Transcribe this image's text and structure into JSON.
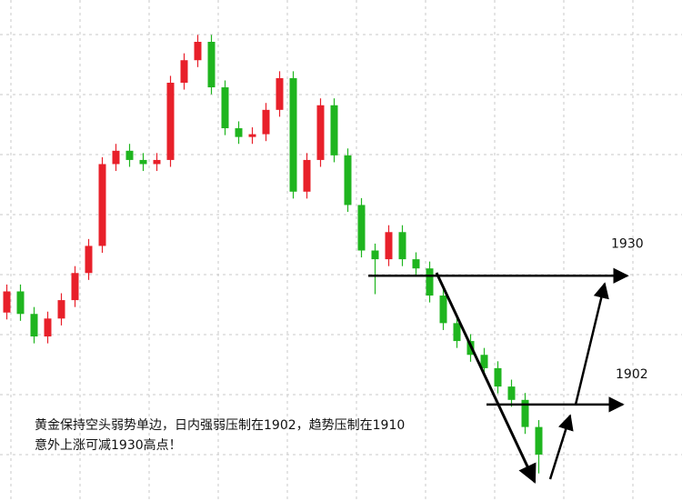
{
  "chart_data": {
    "type": "candlestick",
    "ylim": [
      1881,
      1990
    ],
    "series": [
      {
        "name": null,
        "open": [
          1922.0,
          1926.6,
          1921.7,
          1916.8,
          1920.7,
          1924.7,
          1930.6,
          1936.5,
          1954.3,
          1957.2,
          1955.2,
          1954.3,
          1955.2,
          1972.0,
          1976.9,
          1980.9,
          1971.0,
          1962.1,
          1960.2,
          1960.8,
          1966.1,
          1973.0,
          1948.3,
          1955.2,
          1967.1,
          1956.2,
          1945.4,
          1935.5,
          1933.6,
          1939.5,
          1933.6,
          1931.6,
          1925.7,
          1919.7,
          1915.8,
          1912.8,
          1909.9,
          1905.9,
          1903.0,
          1897.1
        ],
        "high": [
          1928.1,
          1928.1,
          1923.2,
          1922.2,
          1926.2,
          1932.1,
          1938.0,
          1955.8,
          1958.7,
          1958.7,
          1956.7,
          1956.7,
          1973.5,
          1978.4,
          1982.4,
          1982.4,
          1972.5,
          1963.6,
          1962.3,
          1967.6,
          1974.5,
          1974.5,
          1956.7,
          1968.6,
          1968.6,
          1957.7,
          1946.9,
          1937.0,
          1941.0,
          1941.0,
          1935.1,
          1933.1,
          1927.2,
          1921.2,
          1917.3,
          1914.3,
          1911.4,
          1907.4,
          1904.5,
          1898.6
        ],
        "low": [
          1920.5,
          1920.2,
          1915.3,
          1915.3,
          1919.2,
          1923.2,
          1929.1,
          1935.0,
          1952.8,
          1953.7,
          1952.8,
          1952.8,
          1953.7,
          1970.5,
          1975.4,
          1969.5,
          1960.6,
          1958.7,
          1958.7,
          1959.3,
          1964.6,
          1946.8,
          1946.8,
          1953.7,
          1954.7,
          1943.9,
          1934.0,
          1926.0,
          1932.1,
          1932.1,
          1930.1,
          1924.2,
          1918.2,
          1914.3,
          1911.3,
          1908.4,
          1904.4,
          1901.5,
          1895.6,
          1887.0
        ],
        "close": [
          1926.6,
          1921.7,
          1916.8,
          1920.7,
          1924.7,
          1930.6,
          1936.5,
          1954.3,
          1957.2,
          1955.2,
          1954.3,
          1955.2,
          1972.0,
          1976.9,
          1980.9,
          1971.0,
          1962.1,
          1960.2,
          1960.8,
          1966.1,
          1973.0,
          1948.3,
          1955.2,
          1967.1,
          1956.2,
          1945.4,
          1935.5,
          1933.6,
          1939.5,
          1933.6,
          1931.6,
          1925.7,
          1919.7,
          1915.8,
          1912.8,
          1909.9,
          1905.9,
          1903.0,
          1897.1,
          1891.1
        ],
        "up_color": "#e8202a",
        "down_color": "#1fb51f"
      }
    ],
    "levels": [
      1930,
      1902
    ],
    "annotations": [
      "黄金保持空头弱势单边，日内强弱压制在1902，趋势压制在1910",
      "意外上涨可减1930高点！"
    ]
  }
}
